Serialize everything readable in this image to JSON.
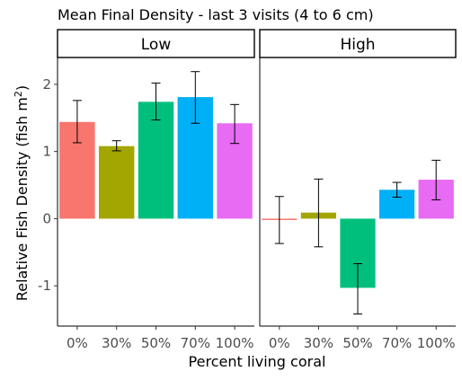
{
  "chart_data": {
    "type": "bar",
    "title": "Mean Final Density - last 3 visits (4 to 6 cm)",
    "xlabel": "Percent living coral",
    "ylabel_main": "Relative Fish Density (fish m",
    "ylabel_sup": "2",
    "ylabel_close": ")",
    "categories": [
      "0%",
      "30%",
      "50%",
      "70%",
      "100%"
    ],
    "colors": [
      "#F8766D",
      "#A3A500",
      "#00BF7D",
      "#00B0F6",
      "#E76BF3"
    ],
    "ylim": [
      -1.6,
      2.4
    ],
    "yticks": [
      -1,
      0,
      1,
      2
    ],
    "grid": false,
    "legend": "none",
    "panels": [
      {
        "label": "Low",
        "values": [
          1.44,
          1.08,
          1.74,
          1.81,
          1.42
        ],
        "err_low": [
          1.13,
          1.01,
          1.47,
          1.42,
          1.12
        ],
        "err_high": [
          1.76,
          1.16,
          2.02,
          2.19,
          1.7
        ]
      },
      {
        "label": "High",
        "values": [
          -0.02,
          0.09,
          -1.03,
          0.43,
          0.58
        ],
        "err_low": [
          -0.37,
          -0.42,
          -1.42,
          0.32,
          0.28
        ],
        "err_high": [
          0.33,
          0.59,
          -0.67,
          0.54,
          0.87
        ]
      }
    ]
  }
}
